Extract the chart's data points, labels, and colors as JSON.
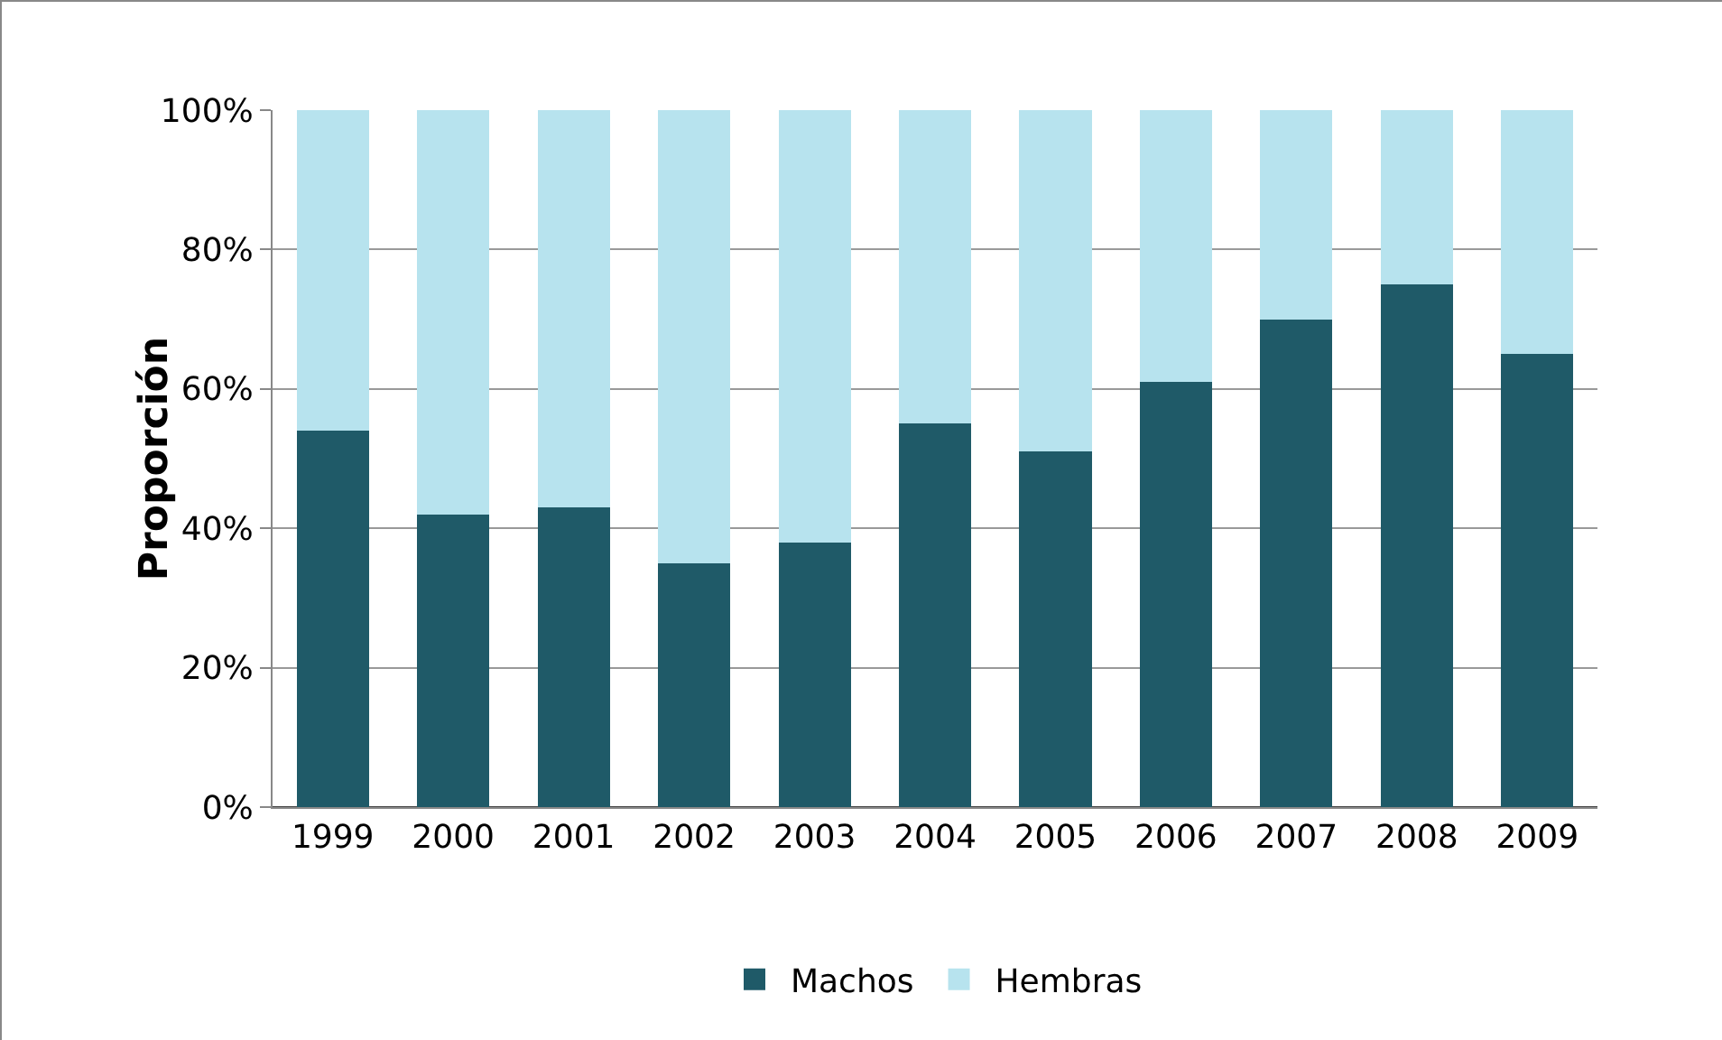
{
  "chart_data": {
    "type": "bar",
    "stacked": true,
    "ylabel": "Proporción",
    "categories": [
      "1999",
      "2000",
      "2001",
      "2002",
      "2003",
      "2004",
      "2005",
      "2006",
      "2007",
      "2008",
      "2009"
    ],
    "series": [
      {
        "name": "Machos",
        "color": "#1f5a68",
        "values": [
          54,
          42,
          43,
          35,
          38,
          55,
          51,
          61,
          70,
          75,
          65
        ]
      },
      {
        "name": "Hembras",
        "color": "#b7e3ee",
        "values": [
          46,
          58,
          57,
          65,
          62,
          45,
          49,
          39,
          30,
          25,
          35
        ]
      }
    ],
    "ylim": [
      0,
      100
    ],
    "yticks": [
      {
        "value": 0,
        "label": "0%"
      },
      {
        "value": 20,
        "label": "20%"
      },
      {
        "value": 40,
        "label": "40%"
      },
      {
        "value": 60,
        "label": "60%"
      },
      {
        "value": 80,
        "label": "80%"
      },
      {
        "value": 100,
        "label": "100%"
      }
    ],
    "grid": "y",
    "legend": "bottom"
  }
}
